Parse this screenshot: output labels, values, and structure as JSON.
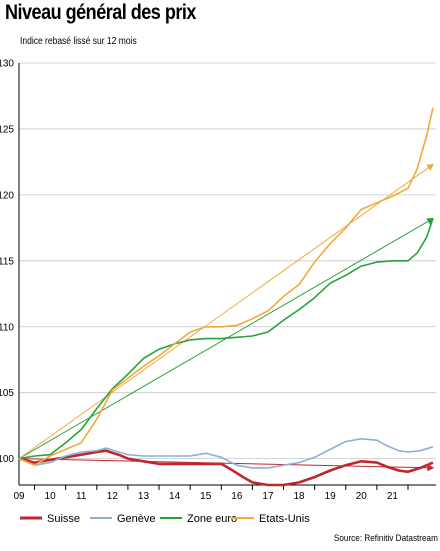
{
  "title": "Niveau général des prix",
  "subtitle": "Indice rebasé lissé sur 12 mois",
  "source": "Source: Refinitiv Datastream",
  "chart_data": {
    "type": "line",
    "xlim": [
      2008.5,
      2021.9
    ],
    "ylim": [
      98,
      130
    ],
    "yticks": [
      100,
      105,
      110,
      115,
      120,
      125,
      130
    ],
    "xticks": [
      "09",
      "10",
      "11",
      "12",
      "13",
      "14",
      "15",
      "16",
      "17",
      "18",
      "19",
      "20",
      "21"
    ],
    "grid": "horizontal",
    "legend_position": "bottom",
    "series": [
      {
        "name": "Suisse",
        "color": "#c0272d",
        "width": 2.6,
        "points": [
          [
            2008.5,
            100
          ],
          [
            2009.0,
            99.7
          ],
          [
            2009.5,
            99.9
          ],
          [
            2010.0,
            100.1
          ],
          [
            2010.5,
            100.3
          ],
          [
            2011.0,
            100.5
          ],
          [
            2011.3,
            100.6
          ],
          [
            2011.7,
            100.3
          ],
          [
            2012.0,
            100.0
          ],
          [
            2012.5,
            99.8
          ],
          [
            2013.0,
            99.6
          ],
          [
            2013.5,
            99.6
          ],
          [
            2014.0,
            99.6
          ],
          [
            2014.5,
            99.6
          ],
          [
            2015.0,
            99.6
          ],
          [
            2015.3,
            99.2
          ],
          [
            2015.7,
            98.6
          ],
          [
            2016.0,
            98.2
          ],
          [
            2016.5,
            98.0
          ],
          [
            2017.0,
            98.0
          ],
          [
            2017.5,
            98.2
          ],
          [
            2018.0,
            98.6
          ],
          [
            2018.5,
            99.1
          ],
          [
            2019.0,
            99.5
          ],
          [
            2019.5,
            99.8
          ],
          [
            2020.0,
            99.7
          ],
          [
            2020.3,
            99.4
          ],
          [
            2020.7,
            99.1
          ],
          [
            2021.0,
            99.0
          ],
          [
            2021.4,
            99.3
          ],
          [
            2021.8,
            99.7
          ]
        ]
      },
      {
        "name": "Genève",
        "color": "#8eaed6",
        "width": 1.6,
        "points": [
          [
            2008.5,
            100
          ],
          [
            2009.0,
            99.5
          ],
          [
            2009.5,
            99.7
          ],
          [
            2010.0,
            100.2
          ],
          [
            2010.5,
            100.5
          ],
          [
            2011.0,
            100.6
          ],
          [
            2011.3,
            100.8
          ],
          [
            2011.7,
            100.5
          ],
          [
            2012.0,
            100.3
          ],
          [
            2012.5,
            100.2
          ],
          [
            2013.0,
            100.2
          ],
          [
            2013.5,
            100.2
          ],
          [
            2014.0,
            100.2
          ],
          [
            2014.5,
            100.4
          ],
          [
            2015.0,
            100.1
          ],
          [
            2015.5,
            99.5
          ],
          [
            2016.0,
            99.3
          ],
          [
            2016.5,
            99.3
          ],
          [
            2017.0,
            99.5
          ],
          [
            2017.5,
            99.7
          ],
          [
            2018.0,
            100.1
          ],
          [
            2018.5,
            100.7
          ],
          [
            2019.0,
            101.3
          ],
          [
            2019.5,
            101.5
          ],
          [
            2020.0,
            101.4
          ],
          [
            2020.3,
            101.0
          ],
          [
            2020.7,
            100.6
          ],
          [
            2021.0,
            100.5
          ],
          [
            2021.4,
            100.6
          ],
          [
            2021.8,
            100.9
          ]
        ]
      },
      {
        "name": "Zone euro",
        "color": "#27a23a",
        "width": 1.6,
        "points": [
          [
            2008.5,
            100
          ],
          [
            2009.0,
            100.2
          ],
          [
            2009.5,
            100.3
          ],
          [
            2010.0,
            101.2
          ],
          [
            2010.5,
            102.2
          ],
          [
            2011.0,
            103.8
          ],
          [
            2011.5,
            105.3
          ],
          [
            2012.0,
            106.4
          ],
          [
            2012.5,
            107.6
          ],
          [
            2013.0,
            108.3
          ],
          [
            2013.5,
            108.7
          ],
          [
            2014.0,
            109.0
          ],
          [
            2014.5,
            109.1
          ],
          [
            2015.0,
            109.1
          ],
          [
            2015.5,
            109.2
          ],
          [
            2016.0,
            109.3
          ],
          [
            2016.5,
            109.6
          ],
          [
            2017.0,
            110.5
          ],
          [
            2017.5,
            111.3
          ],
          [
            2018.0,
            112.2
          ],
          [
            2018.5,
            113.3
          ],
          [
            2019.0,
            113.9
          ],
          [
            2019.5,
            114.6
          ],
          [
            2020.0,
            114.9
          ],
          [
            2020.5,
            115.0
          ],
          [
            2021.0,
            115.0
          ],
          [
            2021.3,
            115.6
          ],
          [
            2021.6,
            116.8
          ],
          [
            2021.8,
            118.2
          ]
        ]
      },
      {
        "name": "Etats-Unis",
        "color": "#f2a93b",
        "width": 1.6,
        "points": [
          [
            2008.5,
            100
          ],
          [
            2009.0,
            99.5
          ],
          [
            2009.5,
            100.2
          ],
          [
            2010.0,
            100.7
          ],
          [
            2010.5,
            101.2
          ],
          [
            2011.0,
            103.0
          ],
          [
            2011.5,
            105.2
          ],
          [
            2012.0,
            106.1
          ],
          [
            2012.5,
            107.0
          ],
          [
            2013.0,
            107.8
          ],
          [
            2013.5,
            108.7
          ],
          [
            2014.0,
            109.6
          ],
          [
            2014.5,
            110.0
          ],
          [
            2015.0,
            110.0
          ],
          [
            2015.5,
            110.1
          ],
          [
            2016.0,
            110.6
          ],
          [
            2016.5,
            111.2
          ],
          [
            2017.0,
            112.3
          ],
          [
            2017.5,
            113.2
          ],
          [
            2018.0,
            114.9
          ],
          [
            2018.5,
            116.3
          ],
          [
            2019.0,
            117.5
          ],
          [
            2019.5,
            118.9
          ],
          [
            2020.0,
            119.4
          ],
          [
            2020.5,
            119.9
          ],
          [
            2021.0,
            120.5
          ],
          [
            2021.3,
            122.0
          ],
          [
            2021.6,
            124.5
          ],
          [
            2021.8,
            126.6
          ]
        ]
      }
    ],
    "trendlines": [
      {
        "series": "Suisse",
        "color": "#c0272d",
        "from": [
          2008.5,
          100.0
        ],
        "to": [
          2021.8,
          99.3
        ]
      },
      {
        "series": "Zone euro",
        "color": "#27a23a",
        "from": [
          2008.5,
          100.0
        ],
        "to": [
          2021.8,
          118.2
        ]
      },
      {
        "series": "Etats-Unis",
        "color": "#f2a93b",
        "from": [
          2008.5,
          100.0
        ],
        "to": [
          2021.8,
          122.3
        ]
      }
    ]
  }
}
